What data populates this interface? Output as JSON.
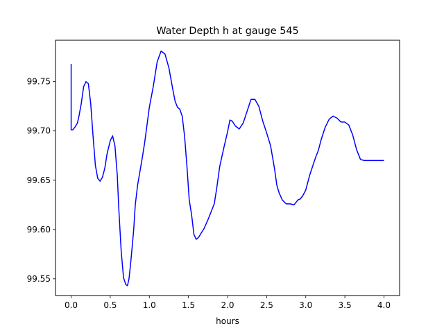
{
  "chart_data": {
    "type": "line",
    "title": "Water Depth h at gauge 545",
    "xlabel": "hours",
    "ylabel": "",
    "xlim": [
      -0.2,
      4.2
    ],
    "ylim": [
      99.533,
      99.792
    ],
    "xticks": [
      0.0,
      0.5,
      1.0,
      1.5,
      2.0,
      2.5,
      3.0,
      3.5,
      4.0
    ],
    "xtick_labels": [
      "0.0",
      "0.5",
      "1.0",
      "1.5",
      "2.0",
      "2.5",
      "3.0",
      "3.5",
      "4.0"
    ],
    "yticks": [
      99.55,
      99.6,
      99.65,
      99.7,
      99.75
    ],
    "ytick_labels": [
      "99.55",
      "99.60",
      "99.65",
      "99.70",
      "99.75"
    ],
    "grid": false,
    "series": [
      {
        "color": "#0000ff",
        "x": [
          0.0,
          0.0,
          0.02,
          0.05,
          0.08,
          0.1,
          0.13,
          0.16,
          0.19,
          0.22,
          0.25,
          0.28,
          0.31,
          0.34,
          0.37,
          0.4,
          0.43,
          0.46,
          0.5,
          0.53,
          0.56,
          0.59,
          0.61,
          0.64,
          0.67,
          0.7,
          0.72,
          0.74,
          0.76,
          0.78,
          0.8,
          0.82,
          0.85,
          0.88,
          0.91,
          0.94,
          0.97,
          1.0,
          1.05,
          1.1,
          1.15,
          1.2,
          1.25,
          1.3,
          1.33,
          1.36,
          1.39,
          1.42,
          1.45,
          1.48,
          1.51,
          1.54,
          1.57,
          1.6,
          1.63,
          1.66,
          1.7,
          1.75,
          1.8,
          1.83,
          1.86,
          1.9,
          1.95,
          2.0,
          2.03,
          2.06,
          2.1,
          2.15,
          2.2,
          2.25,
          2.3,
          2.35,
          2.4,
          2.45,
          2.5,
          2.55,
          2.6,
          2.63,
          2.66,
          2.7,
          2.75,
          2.8,
          2.85,
          2.9,
          2.93,
          2.96,
          3.0,
          3.05,
          3.1,
          3.13,
          3.16,
          3.2,
          3.25,
          3.3,
          3.35,
          3.4,
          3.45,
          3.5,
          3.55,
          3.6,
          3.65,
          3.7,
          3.75,
          3.8,
          3.85,
          3.9,
          3.95,
          4.0
        ],
        "y": [
          99.768,
          99.701,
          99.701,
          99.704,
          99.708,
          99.715,
          99.728,
          99.745,
          99.75,
          99.748,
          99.728,
          99.695,
          99.665,
          99.652,
          99.649,
          99.653,
          99.662,
          99.677,
          99.69,
          99.695,
          99.685,
          99.655,
          99.62,
          99.578,
          99.551,
          99.544,
          99.543,
          99.55,
          99.565,
          99.582,
          99.6,
          99.625,
          99.645,
          99.659,
          99.673,
          99.688,
          99.706,
          99.724,
          99.745,
          99.77,
          99.781,
          99.778,
          99.764,
          99.742,
          99.73,
          99.724,
          99.722,
          99.715,
          99.695,
          99.665,
          99.63,
          99.615,
          99.595,
          99.59,
          99.592,
          99.596,
          99.601,
          99.61,
          99.62,
          99.626,
          99.641,
          99.664,
          99.682,
          99.699,
          99.711,
          99.71,
          99.705,
          99.702,
          99.708,
          99.72,
          99.732,
          99.732,
          99.725,
          99.71,
          99.698,
          99.685,
          99.662,
          99.645,
          99.637,
          99.63,
          99.626,
          99.626,
          99.625,
          99.63,
          99.631,
          99.634,
          99.64,
          99.655,
          99.667,
          99.674,
          99.68,
          99.692,
          99.704,
          99.712,
          99.715,
          99.713,
          99.709,
          99.709,
          99.706,
          99.696,
          99.681,
          99.671,
          99.67,
          99.67,
          99.67,
          99.67,
          99.67,
          99.67
        ]
      }
    ]
  }
}
